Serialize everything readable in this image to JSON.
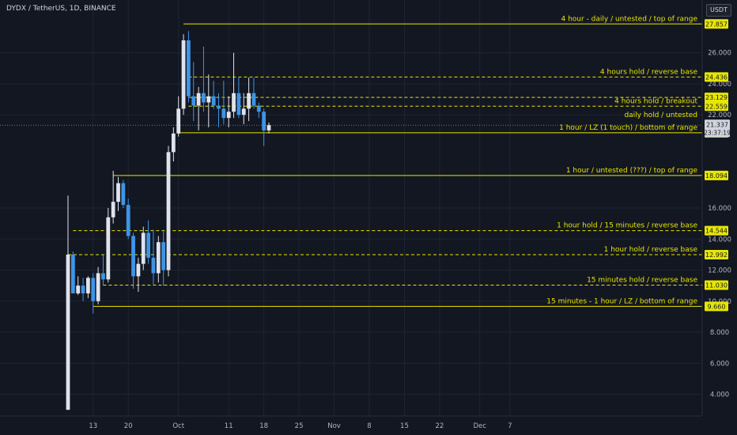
{
  "header": {
    "symbol": "DYDX / TetherUS, 1D, BINANCE",
    "currency": "USDT"
  },
  "colors": {
    "background": "#131722",
    "grid": "#1e2433",
    "text": "#b2b5be",
    "level": "#e6e600",
    "candle_up": "#e0e3eb",
    "candle_down": "#3d95e6",
    "price_tag": "#d1d4dc"
  },
  "chart_data": {
    "type": "candlestick",
    "ylim": [
      2.6,
      29.4
    ],
    "y_ticks": [
      {
        "value": 26,
        "label": "26.000"
      },
      {
        "value": 24,
        "label": "24.000"
      },
      {
        "value": 22,
        "label": "22.000"
      },
      {
        "value": 16,
        "label": "16.000"
      },
      {
        "value": 14,
        "label": "14.000"
      },
      {
        "value": 12,
        "label": "12.000"
      },
      {
        "value": 10,
        "label": "10.000"
      },
      {
        "value": 8,
        "label": "8.000"
      },
      {
        "value": 6,
        "label": "6.000"
      },
      {
        "value": 4,
        "label": "4.000"
      }
    ],
    "x_ticks": [
      {
        "day": 13,
        "label": "13"
      },
      {
        "day": 20,
        "label": "20"
      },
      {
        "day": 30,
        "label": "Oct"
      },
      {
        "day": 40,
        "label": "11"
      },
      {
        "day": 47,
        "label": "18"
      },
      {
        "day": 54,
        "label": "25"
      },
      {
        "day": 61,
        "label": "Nov"
      },
      {
        "day": 68,
        "label": "8"
      },
      {
        "day": 75,
        "label": "15"
      },
      {
        "day": 82,
        "label": "22"
      },
      {
        "day": 90,
        "label": "Dec"
      },
      {
        "day": 96,
        "label": "7"
      }
    ],
    "candles": [
      {
        "day": 8,
        "o": 3.0,
        "h": 16.8,
        "l": 3.0,
        "c": 13.0
      },
      {
        "day": 9,
        "o": 13.0,
        "h": 13.2,
        "l": 10.5,
        "c": 10.5
      },
      {
        "day": 10,
        "o": 10.5,
        "h": 11.6,
        "l": 10.4,
        "c": 11.0
      },
      {
        "day": 11,
        "o": 11.0,
        "h": 11.5,
        "l": 10.0,
        "c": 10.5
      },
      {
        "day": 12,
        "o": 10.5,
        "h": 11.6,
        "l": 10.2,
        "c": 11.5
      },
      {
        "day": 13,
        "o": 11.5,
        "h": 11.8,
        "l": 9.2,
        "c": 10.0
      },
      {
        "day": 14,
        "o": 10.0,
        "h": 12.2,
        "l": 9.8,
        "c": 11.8
      },
      {
        "day": 15,
        "o": 11.8,
        "h": 13.0,
        "l": 11.0,
        "c": 11.4
      },
      {
        "day": 16,
        "o": 11.4,
        "h": 16.0,
        "l": 11.2,
        "c": 15.4
      },
      {
        "day": 17,
        "o": 15.4,
        "h": 18.4,
        "l": 15.0,
        "c": 16.4
      },
      {
        "day": 18,
        "o": 16.4,
        "h": 18.0,
        "l": 15.8,
        "c": 17.6
      },
      {
        "day": 19,
        "o": 17.6,
        "h": 17.8,
        "l": 16.0,
        "c": 16.2
      },
      {
        "day": 20,
        "o": 16.2,
        "h": 16.6,
        "l": 14.0,
        "c": 14.2
      },
      {
        "day": 21,
        "o": 14.2,
        "h": 14.4,
        "l": 10.8,
        "c": 11.6
      },
      {
        "day": 22,
        "o": 11.6,
        "h": 12.8,
        "l": 10.6,
        "c": 12.4
      },
      {
        "day": 23,
        "o": 12.4,
        "h": 14.8,
        "l": 12.0,
        "c": 14.4
      },
      {
        "day": 24,
        "o": 14.4,
        "h": 15.2,
        "l": 12.4,
        "c": 12.8
      },
      {
        "day": 25,
        "o": 12.8,
        "h": 14.6,
        "l": 11.0,
        "c": 11.8
      },
      {
        "day": 26,
        "o": 11.8,
        "h": 14.2,
        "l": 11.2,
        "c": 13.8
      },
      {
        "day": 27,
        "o": 13.8,
        "h": 14.6,
        "l": 11.0,
        "c": 12.0
      },
      {
        "day": 28,
        "o": 12.0,
        "h": 20.0,
        "l": 11.6,
        "c": 19.6
      },
      {
        "day": 29,
        "o": 19.6,
        "h": 21.2,
        "l": 19.0,
        "c": 20.8
      },
      {
        "day": 30,
        "o": 20.8,
        "h": 23.2,
        "l": 20.6,
        "c": 22.4
      },
      {
        "day": 31,
        "o": 22.4,
        "h": 27.2,
        "l": 22.0,
        "c": 26.8
      },
      {
        "day": 32,
        "o": 26.8,
        "h": 27.4,
        "l": 22.8,
        "c": 23.2
      },
      {
        "day": 33,
        "o": 23.2,
        "h": 25.4,
        "l": 21.6,
        "c": 22.6
      },
      {
        "day": 34,
        "o": 22.6,
        "h": 23.8,
        "l": 21.0,
        "c": 23.4
      },
      {
        "day": 35,
        "o": 23.4,
        "h": 26.4,
        "l": 22.2,
        "c": 22.8
      },
      {
        "day": 36,
        "o": 22.8,
        "h": 24.6,
        "l": 21.2,
        "c": 23.2
      },
      {
        "day": 37,
        "o": 23.2,
        "h": 24.2,
        "l": 22.4,
        "c": 22.6
      },
      {
        "day": 38,
        "o": 22.6,
        "h": 23.4,
        "l": 21.2,
        "c": 22.4
      },
      {
        "day": 39,
        "o": 22.4,
        "h": 24.2,
        "l": 21.4,
        "c": 21.8
      },
      {
        "day": 40,
        "o": 21.8,
        "h": 23.2,
        "l": 21.2,
        "c": 22.2
      },
      {
        "day": 41,
        "o": 22.2,
        "h": 26.0,
        "l": 21.8,
        "c": 23.4
      },
      {
        "day": 42,
        "o": 23.4,
        "h": 24.4,
        "l": 21.8,
        "c": 22.0
      },
      {
        "day": 43,
        "o": 22.0,
        "h": 23.4,
        "l": 21.4,
        "c": 22.4
      },
      {
        "day": 44,
        "o": 22.4,
        "h": 24.4,
        "l": 21.6,
        "c": 23.4
      },
      {
        "day": 45,
        "o": 23.4,
        "h": 24.4,
        "l": 22.4,
        "c": 22.6
      },
      {
        "day": 46,
        "o": 22.6,
        "h": 22.8,
        "l": 21.8,
        "c": 22.2
      },
      {
        "day": 47,
        "o": 22.2,
        "h": 22.4,
        "l": 20.0,
        "c": 21.0
      },
      {
        "day": 48,
        "o": 21.0,
        "h": 21.5,
        "l": 20.8,
        "c": 21.337
      }
    ],
    "levels": [
      {
        "value": 27.857,
        "label": "27.857",
        "text": "4 hour - daily / untested / top of range",
        "style": "solid",
        "start_day": 31
      },
      {
        "value": 24.436,
        "label": "24.436",
        "text": "4 hours hold / reverse base",
        "style": "dashed",
        "start_day": 32
      },
      {
        "value": 23.129,
        "label": "23.129",
        "text": "",
        "style": "dashed",
        "start_day": 32
      },
      {
        "value": 22.559,
        "label": "22.559",
        "text": "4 hours hold / breakout",
        "style": "dashed",
        "start_day": 32
      },
      {
        "value": 20.844,
        "label": "20.844",
        "text": "1 hour / LZ (1 touch) / bottom of range",
        "style": "solid",
        "start_day": 30
      },
      {
        "value": 18.094,
        "label": "18.094",
        "text": "1 hour / untested (???) / top of range",
        "style": "solid",
        "start_day": 17
      },
      {
        "value": 14.544,
        "label": "14.544",
        "text": "1 hour hold / 15 minutes / reverse base",
        "style": "dashed",
        "start_day": 9
      },
      {
        "value": 12.992,
        "label": "12.992",
        "text": "1 hour hold / reverse base",
        "style": "dashed",
        "start_day": 8
      },
      {
        "value": 11.03,
        "label": "11.030",
        "text": "15 minutes hold / reverse base",
        "style": "dashed",
        "start_day": 15
      },
      {
        "value": 9.66,
        "label": "9.660",
        "text": "15 minutes - 1 hour / LZ / bottom of range",
        "style": "solid",
        "start_day": 13
      }
    ],
    "extra_annotations": [
      {
        "value": 22.0,
        "text": "daily hold / untested"
      }
    ],
    "current_price": {
      "value": 21.337,
      "label": "21.337",
      "countdown": "23:37:19"
    },
    "grid": true
  }
}
